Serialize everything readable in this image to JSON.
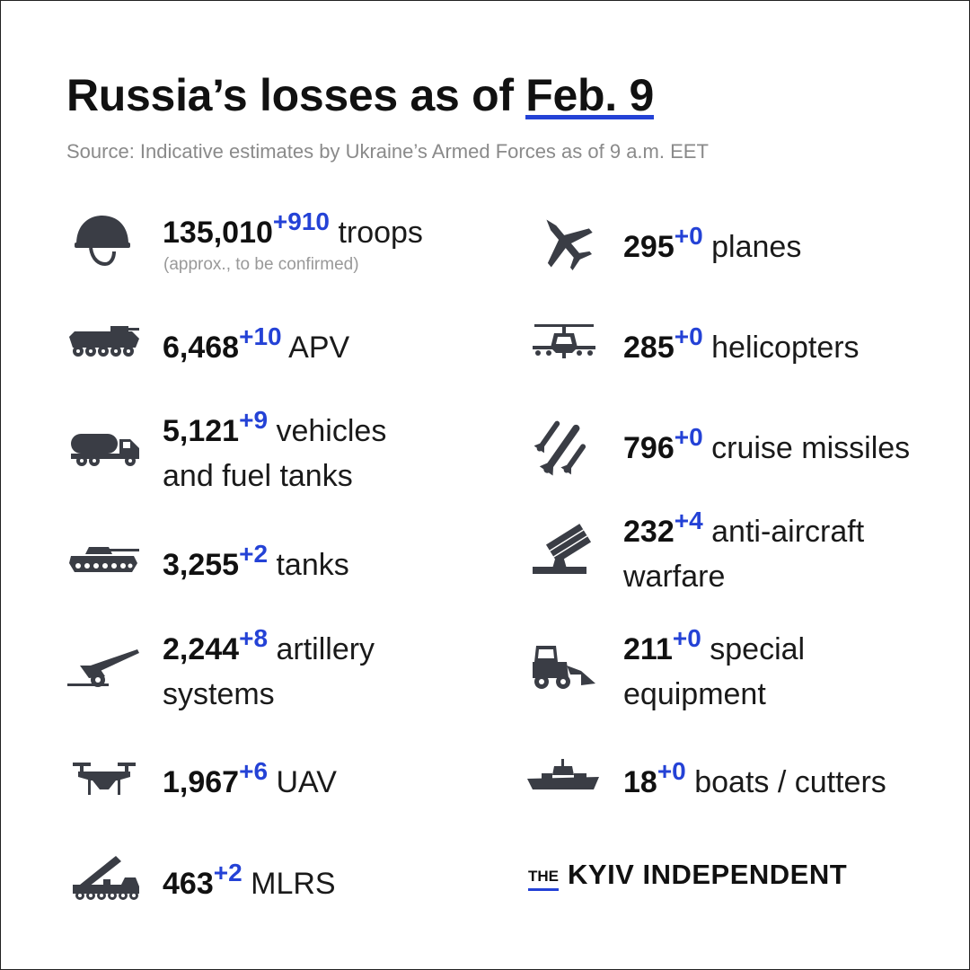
{
  "header": {
    "title_main": "Russia’s losses",
    "title_as_of": "as of",
    "title_date": "Feb. 9",
    "source": "Source: Indicative estimates by Ukraine’s Armed Forces as of 9 a.m. EET"
  },
  "left": [
    {
      "icon": "helmet-icon",
      "num": "135,010",
      "delta": "+910",
      "line1": "troops",
      "note": "(approx., to be confirmed)"
    },
    {
      "icon": "apv-icon",
      "num": "6,468",
      "delta": "+10",
      "line1": "APV"
    },
    {
      "icon": "fuel-truck-icon",
      "num": "5,121",
      "delta": "+9",
      "line1": "vehicles",
      "line2": "and fuel tanks"
    },
    {
      "icon": "tank-icon",
      "num": "3,255",
      "delta": "+2",
      "line1": "tanks"
    },
    {
      "icon": "artillery-icon",
      "num": "2,244",
      "delta": "+8",
      "line1": "artillery",
      "line2": "systems"
    },
    {
      "icon": "drone-icon",
      "num": "1,967",
      "delta": "+6",
      "line1": "UAV"
    },
    {
      "icon": "mlrs-icon",
      "num": "463",
      "delta": "+2",
      "line1": "MLRS"
    }
  ],
  "right": [
    {
      "icon": "plane-icon",
      "num": "295",
      "delta": "+0",
      "line1": "planes"
    },
    {
      "icon": "helicopter-icon",
      "num": "285",
      "delta": "+0",
      "line1": "helicopters"
    },
    {
      "icon": "cruise-missile-icon",
      "num": "796",
      "delta": "+0",
      "line1": "cruise missiles"
    },
    {
      "icon": "anti-aircraft-icon",
      "num": "232",
      "delta": "+4",
      "line1": "anti-aircraft",
      "line2": "warfare"
    },
    {
      "icon": "special-equipment-icon",
      "num": "211",
      "delta": "+0",
      "line1": "special",
      "line2": "equipment"
    },
    {
      "icon": "boat-icon",
      "num": "18",
      "delta": "+0",
      "line1": "boats / cutters"
    }
  ],
  "brand": {
    "the": "THE",
    "name": "KYIV INDEPENDENT"
  },
  "colors": {
    "accent": "#2442d6",
    "icon": "#3a3d45",
    "text": "#1a1a1a",
    "muted": "#8a8a8a"
  }
}
